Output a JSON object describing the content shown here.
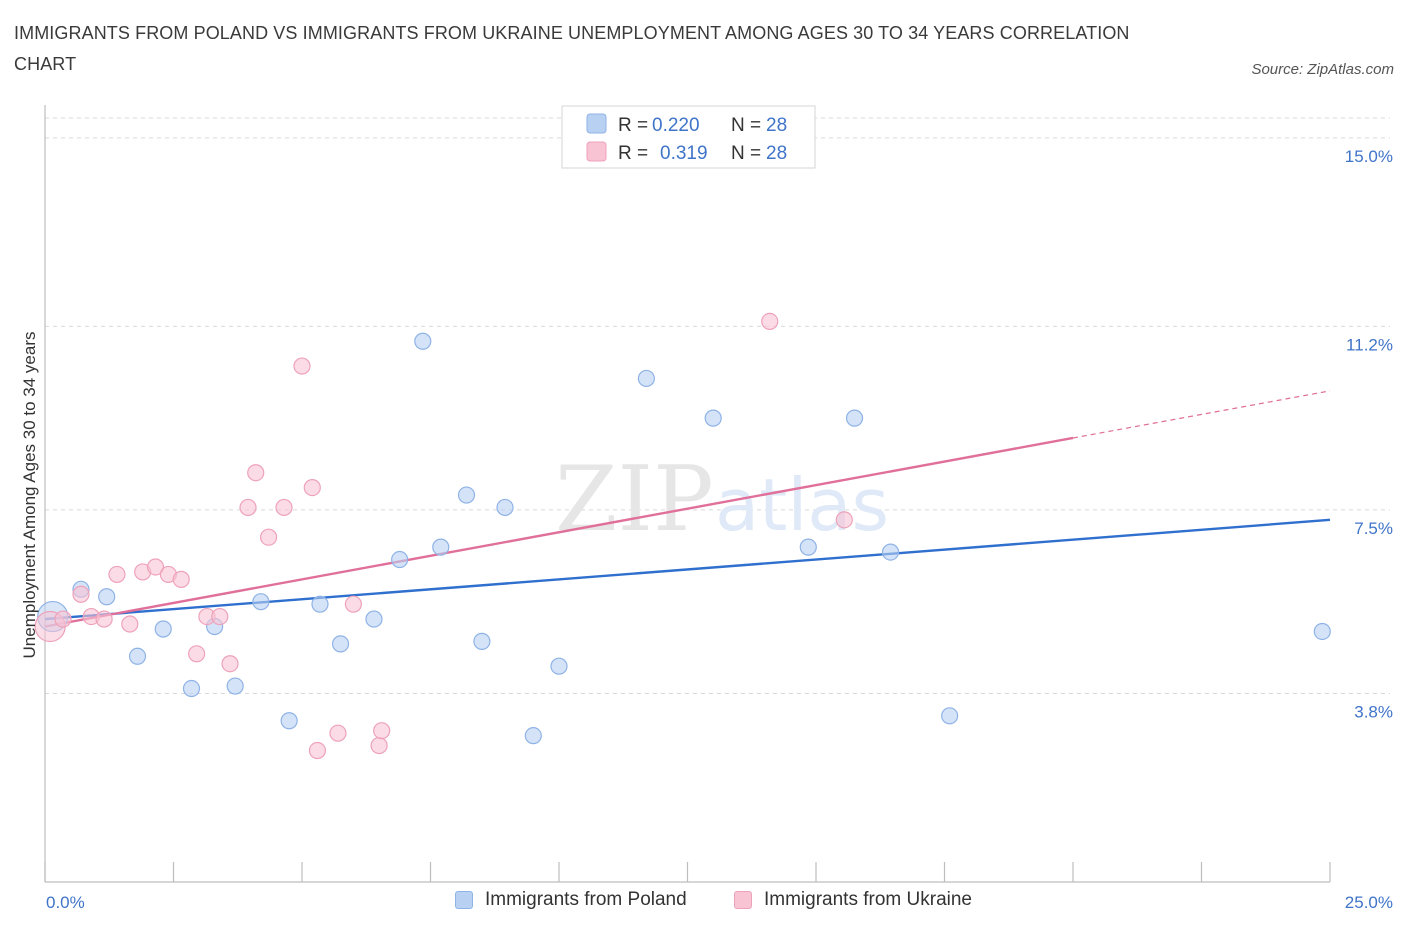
{
  "title": "IMMIGRANTS FROM POLAND VS IMMIGRANTS FROM UKRAINE UNEMPLOYMENT AMONG AGES 30 TO 34 YEARS CORRELATION CHART",
  "source": "Source: ZipAtlas.com",
  "watermark": {
    "zip": "ZIP",
    "atlas": "atlas"
  },
  "colors": {
    "poland_fill": "#b8d1f3",
    "poland_stroke": "#8fb3e6",
    "poland_line": "#2f6fce",
    "ukraine_fill": "#f8c3d3",
    "ukraine_stroke": "#eea2ba",
    "ukraine_line": "#e0709a",
    "tick_label": "#3f74c9",
    "grid": "#d9d9d9"
  },
  "legend": {
    "rows": [
      {
        "r_label": "R =",
        "r_value": "0.220",
        "n_label": "N =",
        "n_value": "28",
        "series": "poland"
      },
      {
        "r_label": "R =",
        "r_value": "0.319",
        "n_label": "N =",
        "n_value": "28",
        "series": "ukraine"
      }
    ]
  },
  "bottom_legend": {
    "poland": "Immigrants from Poland",
    "ukraine": "Immigrants from Ukraine"
  },
  "chart_data": {
    "type": "scatter",
    "title": "IMMIGRANTS FROM POLAND VS IMMIGRANTS FROM UKRAINE UNEMPLOYMENT AMONG AGES 30 TO 34 YEARS CORRELATION CHART",
    "xlabel": "",
    "ylabel": "Unemployment Among Ages 30 to 34 years",
    "xlim": [
      0,
      25
    ],
    "ylim": [
      0,
      15.4
    ],
    "x_tick_labels": [
      {
        "value": 0,
        "label": "0.0%"
      },
      {
        "value": 25,
        "label": "25.0%"
      }
    ],
    "y_ticks": [
      {
        "value": 3.8,
        "label": "3.8%"
      },
      {
        "value": 7.5,
        "label": "7.5%"
      },
      {
        "value": 11.2,
        "label": "11.2%"
      },
      {
        "value": 15.0,
        "label": "15.0%"
      }
    ],
    "x_minor_ticks": [
      0,
      2.5,
      5,
      7.5,
      10,
      12.5,
      15,
      17.5,
      20,
      22.5,
      25
    ],
    "grid": true,
    "series": [
      {
        "name": "Immigrants from Poland",
        "key": "poland",
        "R": 0.22,
        "N": 28,
        "points": [
          {
            "x": 0.15,
            "y": 5.35,
            "big": true
          },
          {
            "x": 0.7,
            "y": 5.9
          },
          {
            "x": 1.2,
            "y": 5.75
          },
          {
            "x": 1.8,
            "y": 4.55
          },
          {
            "x": 2.3,
            "y": 5.1
          },
          {
            "x": 2.85,
            "y": 3.9
          },
          {
            "x": 3.3,
            "y": 5.15
          },
          {
            "x": 3.7,
            "y": 3.95
          },
          {
            "x": 4.2,
            "y": 5.65
          },
          {
            "x": 4.75,
            "y": 3.25
          },
          {
            "x": 5.35,
            "y": 5.6
          },
          {
            "x": 5.75,
            "y": 4.8
          },
          {
            "x": 6.4,
            "y": 5.3
          },
          {
            "x": 6.9,
            "y": 6.5
          },
          {
            "x": 7.35,
            "y": 10.9
          },
          {
            "x": 7.7,
            "y": 6.75
          },
          {
            "x": 8.2,
            "y": 7.8
          },
          {
            "x": 8.5,
            "y": 4.85
          },
          {
            "x": 8.95,
            "y": 7.55
          },
          {
            "x": 9.5,
            "y": 2.95
          },
          {
            "x": 10.0,
            "y": 4.35
          },
          {
            "x": 11.7,
            "y": 10.15
          },
          {
            "x": 13.0,
            "y": 9.35
          },
          {
            "x": 14.85,
            "y": 6.75
          },
          {
            "x": 15.75,
            "y": 9.35
          },
          {
            "x": 16.45,
            "y": 6.65
          },
          {
            "x": 17.6,
            "y": 3.35
          },
          {
            "x": 24.85,
            "y": 5.05
          }
        ],
        "trend": {
          "x0": 0,
          "y0": 5.3,
          "x1": 25,
          "y1": 7.3
        }
      },
      {
        "name": "Immigrants from Ukraine",
        "key": "ukraine",
        "R": 0.319,
        "N": 28,
        "points": [
          {
            "x": 0.1,
            "y": 5.15,
            "big": true
          },
          {
            "x": 0.35,
            "y": 5.3
          },
          {
            "x": 0.7,
            "y": 5.8
          },
          {
            "x": 0.9,
            "y": 5.35
          },
          {
            "x": 1.15,
            "y": 5.3
          },
          {
            "x": 1.4,
            "y": 6.2
          },
          {
            "x": 1.65,
            "y": 5.2
          },
          {
            "x": 1.9,
            "y": 6.25
          },
          {
            "x": 2.15,
            "y": 6.35
          },
          {
            "x": 2.4,
            "y": 6.2
          },
          {
            "x": 2.65,
            "y": 6.1
          },
          {
            "x": 2.95,
            "y": 4.6
          },
          {
            "x": 3.15,
            "y": 5.35
          },
          {
            "x": 3.4,
            "y": 5.35
          },
          {
            "x": 3.6,
            "y": 4.4
          },
          {
            "x": 3.95,
            "y": 7.55
          },
          {
            "x": 4.1,
            "y": 8.25
          },
          {
            "x": 4.35,
            "y": 6.95
          },
          {
            "x": 4.65,
            "y": 7.55
          },
          {
            "x": 5.0,
            "y": 10.4
          },
          {
            "x": 5.2,
            "y": 7.95
          },
          {
            "x": 5.3,
            "y": 2.65
          },
          {
            "x": 5.7,
            "y": 3.0
          },
          {
            "x": 6.0,
            "y": 5.6
          },
          {
            "x": 6.5,
            "y": 2.75
          },
          {
            "x": 6.55,
            "y": 3.05
          },
          {
            "x": 14.1,
            "y": 11.3
          },
          {
            "x": 15.55,
            "y": 7.3
          }
        ],
        "trend": {
          "x0": 0,
          "y0": 5.15,
          "x1": 20,
          "y1": 8.95
        },
        "trend_dashed": {
          "x0": 20,
          "y0": 8.95,
          "x1": 25,
          "y1": 9.9
        }
      }
    ]
  }
}
